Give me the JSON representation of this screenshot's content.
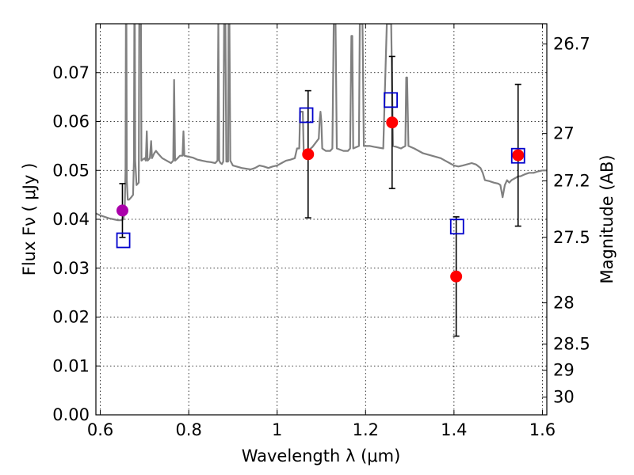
{
  "chart_data": {
    "type": "scatter",
    "title": "",
    "xlabel": "Wavelength  λ (μm)",
    "ylabel": "Flux  Fν  ( μJy )",
    "y2label": "Magnitude (AB)",
    "xlim": [
      0.59,
      1.61
    ],
    "ylim": [
      0.0,
      0.08
    ],
    "x_ticks": [
      0.6,
      0.8,
      1.0,
      1.2,
      1.4,
      1.6
    ],
    "x_tick_labels": [
      "0.6",
      "0.8",
      "1",
      "1.2",
      "1.4",
      "1.6"
    ],
    "y_ticks": [
      0.0,
      0.01,
      0.02,
      0.03,
      0.04,
      0.05,
      0.06,
      0.07
    ],
    "y_tick_labels": [
      "0.00",
      "0.01",
      "0.02",
      "0.03",
      "0.04",
      "0.05",
      "0.06",
      "0.07"
    ],
    "y2_ticks": [
      {
        "mag": 26.7,
        "label": "26.7"
      },
      {
        "mag": 27.0,
        "label": "27"
      },
      {
        "mag": 27.2,
        "label": "27.2"
      },
      {
        "mag": 27.5,
        "label": "27.5"
      },
      {
        "mag": 28.0,
        "label": "28"
      },
      {
        "mag": 28.5,
        "label": "28.5"
      },
      {
        "mag": 29.0,
        "label": "29"
      },
      {
        "mag": 30.0,
        "label": "30"
      }
    ],
    "grid": true,
    "colors": {
      "model": "#808080",
      "observed": "#ff0000",
      "observed_first": "#aa00aa",
      "synthetic": "#0000cc",
      "errorbar": "#000000"
    },
    "series": [
      {
        "kind": "line",
        "points": [
          [
            0.59,
            0.0412
          ],
          [
            0.6,
            0.0408
          ],
          [
            0.61,
            0.0405
          ],
          [
            0.62,
            0.0402
          ],
          [
            0.63,
            0.04
          ],
          [
            0.64,
            0.0398
          ],
          [
            0.648,
            0.0398
          ],
          [
            0.652,
            0.04
          ],
          [
            0.655,
            0.0415
          ],
          [
            0.657,
            0.05
          ],
          [
            0.658,
            0.08
          ],
          [
            0.659,
            0.08
          ],
          [
            0.66,
            0.048
          ],
          [
            0.662,
            0.044
          ],
          [
            0.665,
            0.044
          ],
          [
            0.67,
            0.0445
          ],
          [
            0.674,
            0.045
          ],
          [
            0.676,
            0.052
          ],
          [
            0.677,
            0.08
          ],
          [
            0.678,
            0.08
          ],
          [
            0.679,
            0.052
          ],
          [
            0.682,
            0.047
          ],
          [
            0.687,
            0.0475
          ],
          [
            0.688,
            0.08
          ],
          [
            0.692,
            0.08
          ],
          [
            0.693,
            0.052
          ],
          [
            0.7,
            0.0525
          ],
          [
            0.703,
            0.052
          ],
          [
            0.705,
            0.058
          ],
          [
            0.707,
            0.052
          ],
          [
            0.712,
            0.0525
          ],
          [
            0.715,
            0.056
          ],
          [
            0.717,
            0.0525
          ],
          [
            0.722,
            0.0535
          ],
          [
            0.726,
            0.054
          ],
          [
            0.73,
            0.0535
          ],
          [
            0.74,
            0.0525
          ],
          [
            0.75,
            0.052
          ],
          [
            0.76,
            0.0515
          ],
          [
            0.765,
            0.052
          ],
          [
            0.767,
            0.0685
          ],
          [
            0.769,
            0.052
          ],
          [
            0.775,
            0.0525
          ],
          [
            0.78,
            0.053
          ],
          [
            0.786,
            0.053
          ],
          [
            0.788,
            0.058
          ],
          [
            0.79,
            0.053
          ],
          [
            0.8,
            0.0528
          ],
          [
            0.81,
            0.0526
          ],
          [
            0.82,
            0.0522
          ],
          [
            0.83,
            0.052
          ],
          [
            0.84,
            0.0518
          ],
          [
            0.85,
            0.0517
          ],
          [
            0.86,
            0.0515
          ],
          [
            0.865,
            0.052
          ],
          [
            0.867,
            0.08
          ],
          [
            0.869,
            0.052
          ],
          [
            0.872,
            0.0515
          ],
          [
            0.875,
            0.0513
          ],
          [
            0.878,
            0.0518
          ],
          [
            0.88,
            0.08
          ],
          [
            0.881,
            0.08
          ],
          [
            0.883,
            0.08
          ],
          [
            0.885,
            0.0518
          ],
          [
            0.889,
            0.0518
          ],
          [
            0.89,
            0.08
          ],
          [
            0.892,
            0.08
          ],
          [
            0.894,
            0.052
          ],
          [
            0.9,
            0.051
          ],
          [
            0.92,
            0.0505
          ],
          [
            0.94,
            0.0502
          ],
          [
            0.95,
            0.0505
          ],
          [
            0.96,
            0.051
          ],
          [
            0.97,
            0.0508
          ],
          [
            0.98,
            0.0505
          ],
          [
            0.99,
            0.0508
          ],
          [
            1.0,
            0.051
          ],
          [
            1.01,
            0.0515
          ],
          [
            1.02,
            0.052
          ],
          [
            1.03,
            0.0522
          ],
          [
            1.04,
            0.0525
          ],
          [
            1.045,
            0.0545
          ],
          [
            1.05,
            0.0545
          ],
          [
            1.052,
            0.062
          ],
          [
            1.058,
            0.062
          ],
          [
            1.06,
            0.054
          ],
          [
            1.07,
            0.054
          ],
          [
            1.08,
            0.0548
          ],
          [
            1.09,
            0.056
          ],
          [
            1.094,
            0.0565
          ],
          [
            1.096,
            0.06
          ],
          [
            1.098,
            0.062
          ],
          [
            1.1,
            0.06
          ],
          [
            1.102,
            0.0545
          ],
          [
            1.11,
            0.054
          ],
          [
            1.12,
            0.054
          ],
          [
            1.125,
            0.0545
          ],
          [
            1.128,
            0.08
          ],
          [
            1.132,
            0.08
          ],
          [
            1.135,
            0.0545
          ],
          [
            1.15,
            0.054
          ],
          [
            1.16,
            0.054
          ],
          [
            1.165,
            0.0545
          ],
          [
            1.168,
            0.0775
          ],
          [
            1.17,
            0.0775
          ],
          [
            1.172,
            0.0545
          ],
          [
            1.18,
            0.0548
          ],
          [
            1.185,
            0.055
          ],
          [
            1.187,
            0.08
          ],
          [
            1.193,
            0.08
          ],
          [
            1.196,
            0.055
          ],
          [
            1.21,
            0.055
          ],
          [
            1.22,
            0.0548
          ],
          [
            1.24,
            0.0545
          ],
          [
            1.248,
            0.08
          ],
          [
            1.258,
            0.08
          ],
          [
            1.262,
            0.055
          ],
          [
            1.27,
            0.0548
          ],
          [
            1.28,
            0.0545
          ],
          [
            1.29,
            0.055
          ],
          [
            1.292,
            0.069
          ],
          [
            1.294,
            0.069
          ],
          [
            1.297,
            0.055
          ],
          [
            1.31,
            0.0545
          ],
          [
            1.33,
            0.0535
          ],
          [
            1.35,
            0.053
          ],
          [
            1.37,
            0.0525
          ],
          [
            1.38,
            0.052
          ],
          [
            1.39,
            0.0515
          ],
          [
            1.4,
            0.051
          ],
          [
            1.41,
            0.0508
          ],
          [
            1.42,
            0.051
          ],
          [
            1.44,
            0.0515
          ],
          [
            1.45,
            0.0512
          ],
          [
            1.46,
            0.0505
          ],
          [
            1.465,
            0.0495
          ],
          [
            1.47,
            0.048
          ],
          [
            1.48,
            0.0478
          ],
          [
            1.49,
            0.0475
          ],
          [
            1.5,
            0.0473
          ],
          [
            1.505,
            0.047
          ],
          [
            1.51,
            0.0445
          ],
          [
            1.515,
            0.047
          ],
          [
            1.52,
            0.048
          ],
          [
            1.525,
            0.0475
          ],
          [
            1.53,
            0.048
          ],
          [
            1.54,
            0.0485
          ],
          [
            1.545,
            0.0488
          ],
          [
            1.55,
            0.0488
          ],
          [
            1.56,
            0.0492
          ],
          [
            1.57,
            0.0495
          ],
          [
            1.58,
            0.0495
          ],
          [
            1.59,
            0.0498
          ],
          [
            1.6,
            0.05
          ],
          [
            1.61,
            0.05
          ]
        ]
      },
      {
        "kind": "errorbar",
        "points": [
          {
            "x": 0.65,
            "y": 0.0418,
            "err": 0.0055
          },
          {
            "x": 1.07,
            "y": 0.0533,
            "err": 0.013
          },
          {
            "x": 1.26,
            "y": 0.0598,
            "err": 0.0135
          },
          {
            "x": 1.405,
            "y": 0.0283,
            "err": 0.0122
          },
          {
            "x": 1.545,
            "y": 0.0531,
            "err": 0.0145
          }
        ]
      },
      {
        "kind": "boxes",
        "points": [
          {
            "x": 0.652,
            "y": 0.0357
          },
          {
            "x": 1.066,
            "y": 0.0613
          },
          {
            "x": 1.257,
            "y": 0.0644
          },
          {
            "x": 1.407,
            "y": 0.0385
          },
          {
            "x": 1.545,
            "y": 0.053
          }
        ]
      }
    ]
  }
}
